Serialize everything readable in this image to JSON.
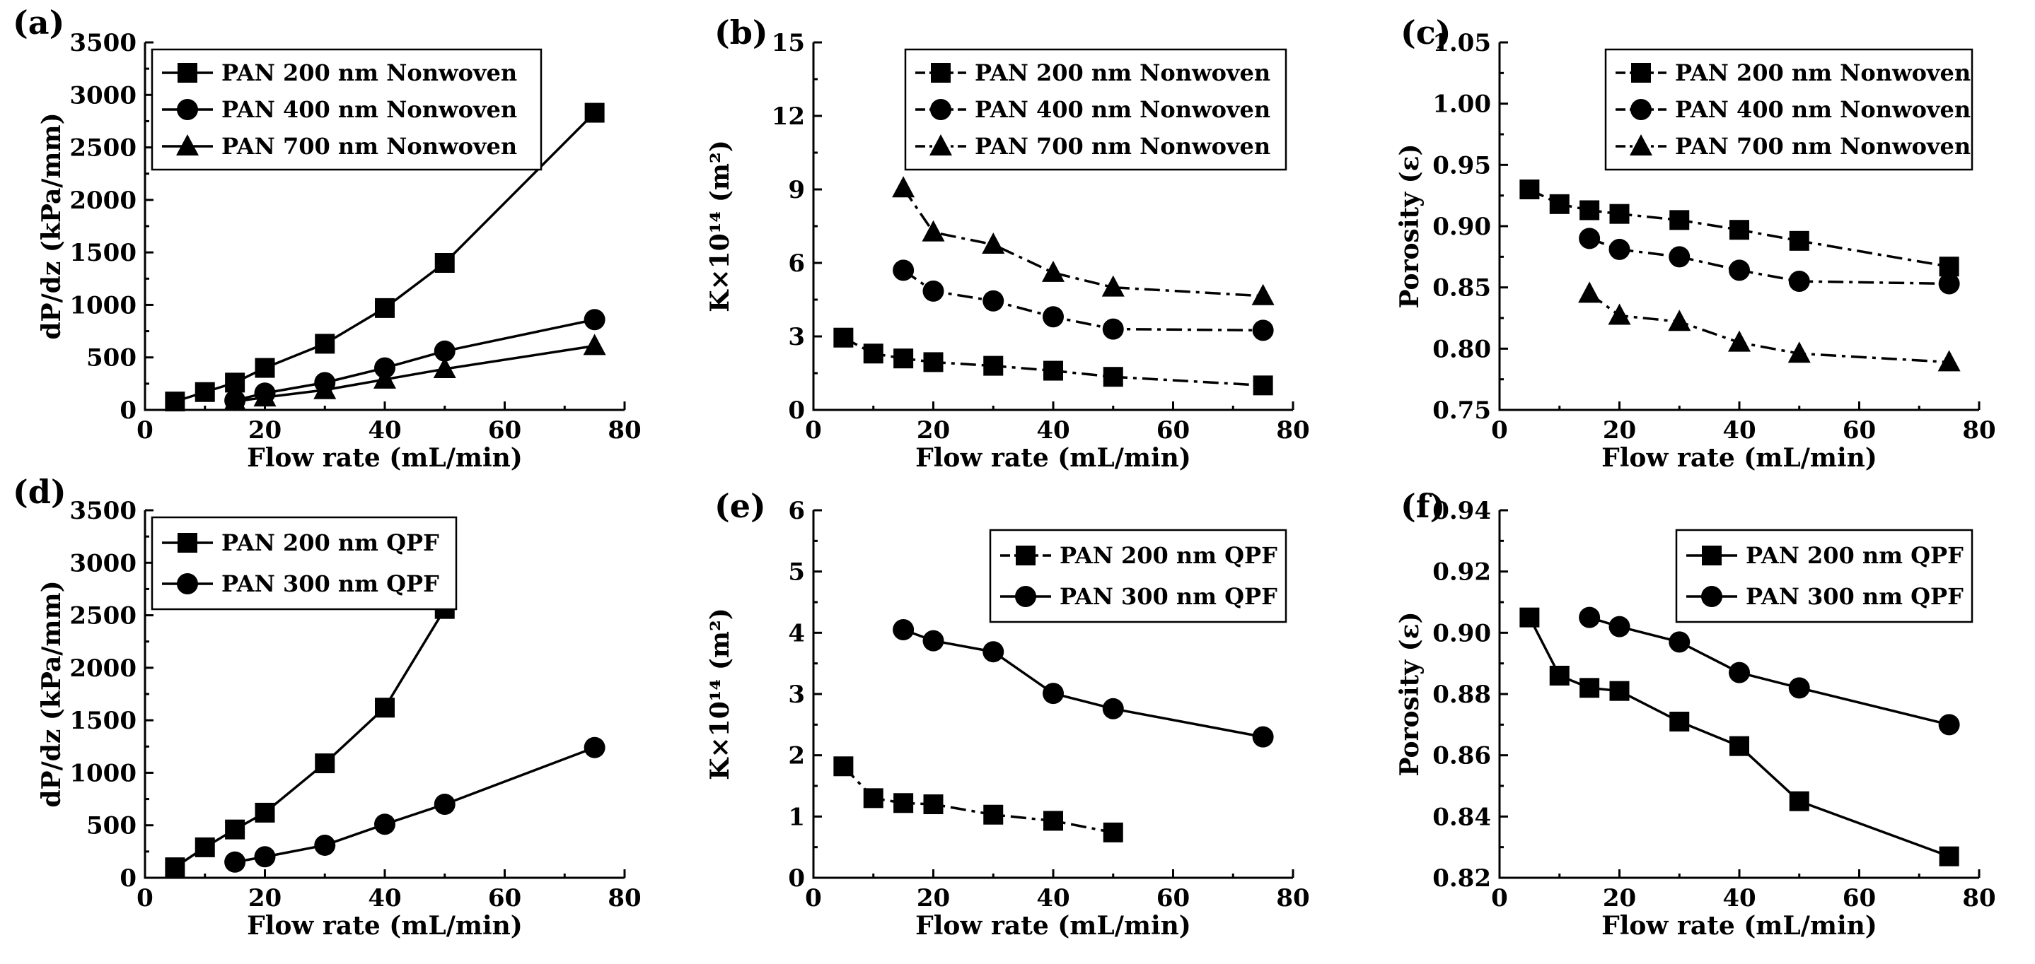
{
  "chart_data": [
    {
      "panel_label": "(a)",
      "type": "line",
      "xlabel": "Flow rate (mL/min)",
      "ylabel": "dP/dz (kPa/mm)",
      "xlim": [
        0,
        80
      ],
      "ylim": [
        0,
        3500
      ],
      "xticks": [
        0,
        20,
        40,
        60,
        80
      ],
      "yticks": [
        0,
        500,
        1000,
        1500,
        2000,
        2500,
        3000,
        3500
      ],
      "legend_position": "top-left",
      "series": [
        {
          "name": "PAN 200 nm Nonwoven",
          "marker": "square",
          "dash": "solid",
          "x": [
            5,
            10,
            15,
            20,
            30,
            40,
            50,
            75
          ],
          "y": [
            80,
            170,
            260,
            400,
            630,
            970,
            1400,
            2830
          ]
        },
        {
          "name": "PAN 400 nm Nonwoven",
          "marker": "circle",
          "dash": "solid",
          "x": [
            15,
            20,
            30,
            40,
            50,
            75
          ],
          "y": [
            90,
            160,
            260,
            400,
            560,
            860
          ]
        },
        {
          "name": "PAN 700 nm Nonwoven",
          "marker": "triangle",
          "dash": "solid",
          "x": [
            15,
            20,
            30,
            40,
            50,
            75
          ],
          "y": [
            80,
            120,
            190,
            290,
            390,
            610
          ]
        }
      ]
    },
    {
      "panel_label": "(b)",
      "type": "line",
      "xlabel": "Flow rate (mL/min)",
      "ylabel": "K×10¹⁴ (m²)",
      "xlim": [
        0,
        80
      ],
      "ylim": [
        0,
        15
      ],
      "xticks": [
        0,
        20,
        40,
        60,
        80
      ],
      "yticks": [
        0,
        3,
        6,
        9,
        12,
        15
      ],
      "legend_position": "top-right",
      "series": [
        {
          "name": "PAN 200 nm Nonwoven",
          "marker": "square",
          "dash": "dashdot",
          "x": [
            5,
            10,
            15,
            20,
            30,
            40,
            50,
            75
          ],
          "y": [
            2.95,
            2.3,
            2.1,
            1.95,
            1.8,
            1.6,
            1.35,
            1.0
          ]
        },
        {
          "name": "PAN 400 nm Nonwoven",
          "marker": "circle",
          "dash": "dashdot",
          "x": [
            15,
            20,
            30,
            40,
            50,
            75
          ],
          "y": [
            5.7,
            4.85,
            4.45,
            3.8,
            3.3,
            3.25
          ]
        },
        {
          "name": "PAN 700 nm Nonwoven",
          "marker": "triangle",
          "dash": "dashdot",
          "x": [
            15,
            20,
            30,
            40,
            50,
            75
          ],
          "y": [
            9.05,
            7.25,
            6.75,
            5.6,
            5.0,
            4.65
          ]
        }
      ]
    },
    {
      "panel_label": "(c)",
      "type": "line",
      "xlabel": "Flow rate (mL/min)",
      "ylabel": "Porosity (ε)",
      "xlim": [
        0,
        80
      ],
      "ylim": [
        0.75,
        1.05
      ],
      "xticks": [
        0,
        20,
        40,
        60,
        80
      ],
      "yticks": [
        0.75,
        0.8,
        0.85,
        0.9,
        0.95,
        1.0,
        1.05
      ],
      "ytick_decimals": 2,
      "legend_position": "top-right",
      "series": [
        {
          "name": "PAN 200 nm Nonwoven",
          "marker": "square",
          "dash": "dashdot",
          "x": [
            5,
            10,
            15,
            20,
            30,
            40,
            50,
            75
          ],
          "y": [
            0.93,
            0.918,
            0.913,
            0.91,
            0.905,
            0.897,
            0.888,
            0.867
          ]
        },
        {
          "name": "PAN 400 nm Nonwoven",
          "marker": "circle",
          "dash": "dashdot",
          "x": [
            15,
            20,
            30,
            40,
            50,
            75
          ],
          "y": [
            0.89,
            0.881,
            0.875,
            0.864,
            0.855,
            0.853
          ]
        },
        {
          "name": "PAN 700 nm Nonwoven",
          "marker": "triangle",
          "dash": "dashdot",
          "x": [
            15,
            20,
            30,
            40,
            50,
            75
          ],
          "y": [
            0.845,
            0.827,
            0.822,
            0.805,
            0.796,
            0.789
          ]
        }
      ]
    },
    {
      "panel_label": "(d)",
      "type": "line",
      "xlabel": "Flow rate (mL/min)",
      "ylabel": "dP/dz (kPa/mm)",
      "xlim": [
        0,
        80
      ],
      "ylim": [
        0,
        3500
      ],
      "xticks": [
        0,
        20,
        40,
        60,
        80
      ],
      "yticks": [
        0,
        500,
        1000,
        1500,
        2000,
        2500,
        3000,
        3500
      ],
      "legend_position": "top-left",
      "series": [
        {
          "name": "PAN 200 nm QPF",
          "marker": "square",
          "dash": "solid",
          "x": [
            5,
            10,
            15,
            20,
            30,
            40,
            50
          ],
          "y": [
            100,
            290,
            460,
            620,
            1090,
            1620,
            2560
          ]
        },
        {
          "name": "PAN 300 nm QPF",
          "marker": "circle",
          "dash": "solid",
          "x": [
            15,
            20,
            30,
            40,
            50,
            75
          ],
          "y": [
            150,
            200,
            310,
            510,
            700,
            1240
          ]
        }
      ]
    },
    {
      "panel_label": "(e)",
      "type": "line",
      "xlabel": "Flow rate (mL/min)",
      "ylabel": "K×10¹⁴ (m²)",
      "xlim": [
        0,
        80
      ],
      "ylim": [
        0,
        6
      ],
      "xticks": [
        0,
        20,
        40,
        60,
        80
      ],
      "yticks": [
        0,
        1,
        2,
        3,
        4,
        5,
        6
      ],
      "legend_position": "top-right",
      "series": [
        {
          "name": "PAN 200 nm QPF",
          "marker": "square",
          "dash": "dashdot",
          "x": [
            5,
            10,
            15,
            20,
            30,
            40,
            50
          ],
          "y": [
            1.82,
            1.3,
            1.22,
            1.2,
            1.03,
            0.93,
            0.74
          ]
        },
        {
          "name": "PAN 300 nm QPF",
          "marker": "circle",
          "dash": "solid",
          "x": [
            15,
            20,
            30,
            40,
            50,
            75
          ],
          "y": [
            4.05,
            3.87,
            3.69,
            3.01,
            2.76,
            2.3
          ]
        }
      ]
    },
    {
      "panel_label": "(f)",
      "type": "line",
      "xlabel": "Flow rate (mL/min)",
      "ylabel": "Porosity (ε)",
      "xlim": [
        0,
        80
      ],
      "ylim": [
        0.82,
        0.94
      ],
      "xticks": [
        0,
        20,
        40,
        60,
        80
      ],
      "yticks": [
        0.82,
        0.84,
        0.86,
        0.88,
        0.9,
        0.92,
        0.94
      ],
      "ytick_decimals": 2,
      "legend_position": "top-right",
      "series": [
        {
          "name": "PAN 200 nm QPF",
          "marker": "square",
          "dash": "solid",
          "x": [
            5,
            10,
            15,
            20,
            30,
            40,
            50,
            75
          ],
          "y": [
            0.905,
            0.886,
            0.882,
            0.881,
            0.871,
            0.863,
            0.845,
            0.827
          ]
        },
        {
          "name": "PAN 300 nm QPF",
          "marker": "circle",
          "dash": "solid",
          "x": [
            15,
            20,
            30,
            40,
            50,
            75
          ],
          "y": [
            0.905,
            0.902,
            0.897,
            0.887,
            0.882,
            0.87
          ]
        }
      ]
    }
  ]
}
